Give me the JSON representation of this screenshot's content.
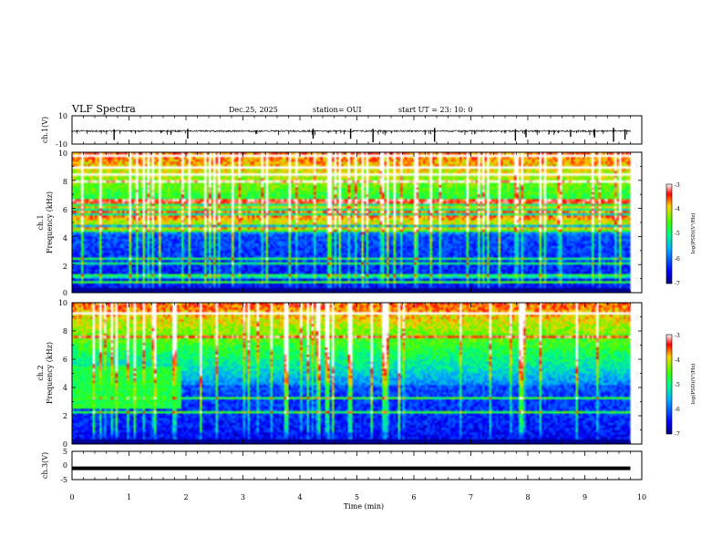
{
  "header": {
    "title": "VLF Spectra",
    "date": "Dec.25, 2025",
    "station": "station= OUI",
    "start": "start  UT  =   23: 10: 0"
  },
  "chart_data": [
    {
      "type": "line",
      "panel": "ch1-waveform",
      "ylabel": "ch.1(V)",
      "ylim": [
        -10,
        10
      ],
      "yticks": [
        "10",
        "-10"
      ],
      "xlim": [
        0,
        10
      ],
      "baseline": -0.8,
      "noise_amplitude": 0.6
    },
    {
      "type": "heatmap",
      "panel": "ch1-spectrogram",
      "ylabel_line1": "ch.1",
      "ylabel_line2": "Frequency (kHz)",
      "ylim": [
        0,
        10
      ],
      "yticks": [
        "0",
        "2",
        "4",
        "6",
        "8",
        "10"
      ],
      "xlim": [
        0,
        10
      ],
      "data_end_min": 9.8,
      "colorbar": {
        "label": "log(PSD)(V²/Hz)",
        "range": [
          -7,
          -3
        ],
        "ticks": [
          "-3",
          "-4",
          "-5",
          "-6",
          "-7"
        ]
      }
    },
    {
      "type": "heatmap",
      "panel": "ch2-spectrogram",
      "ylabel_line1": "ch.2",
      "ylabel_line2": "Frequency (kHz)",
      "ylim": [
        0,
        10
      ],
      "yticks": [
        "0",
        "2",
        "4",
        "6",
        "8",
        "10"
      ],
      "xlim": [
        0,
        10
      ],
      "data_end_min": 9.8,
      "colorbar": {
        "label": "log(PSD)(V²/Hz)",
        "range": [
          -7,
          -3
        ],
        "ticks": [
          "-3",
          "-4",
          "-5",
          "-6",
          "-7"
        ]
      }
    },
    {
      "type": "line",
      "panel": "ch3-waveform",
      "ylabel": "ch.3(V)",
      "ylim": [
        -5,
        5
      ],
      "yticks": [
        "5",
        "0",
        "-5"
      ],
      "xlim": [
        0,
        10
      ],
      "baseline": -1
    }
  ],
  "xaxis": {
    "label": "Time (min)",
    "ticks": [
      "0",
      "1",
      "2",
      "3",
      "4",
      "5",
      "6",
      "7",
      "8",
      "9",
      "10"
    ]
  },
  "colors": {
    "frame": "#000000",
    "signal": "#000000"
  }
}
